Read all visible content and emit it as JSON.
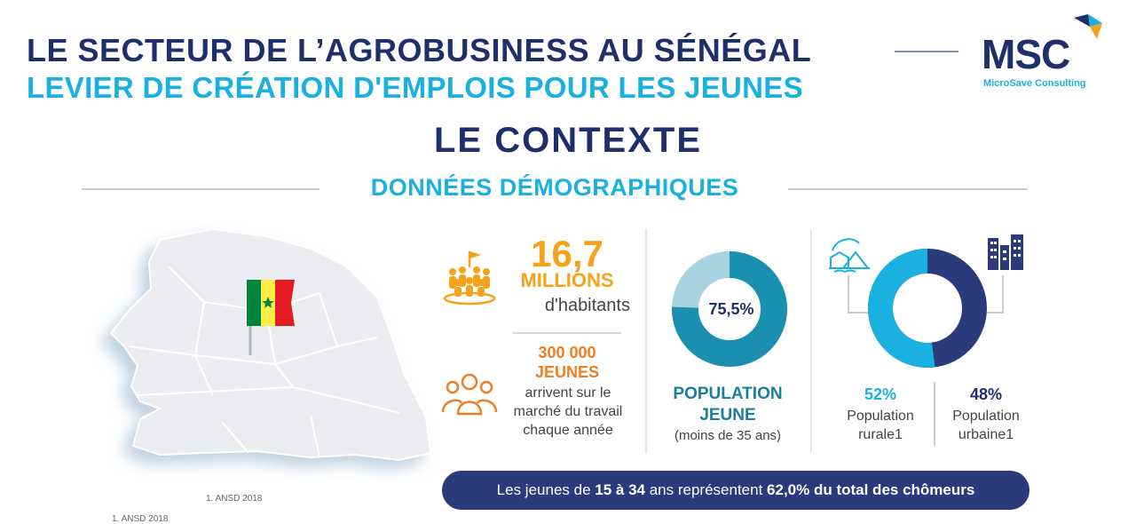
{
  "header": {
    "title_line1": "LE SECTEUR DE L’AGROBUSINESS AU SÉNÉGAL",
    "title_line2": "LEVIER DE CRÉATION D'EMPLOIS POUR LES JEUNES"
  },
  "logo": {
    "text": "MSC",
    "subtitle": "MicroSave Consulting",
    "colors": {
      "navy": "#1f2f6b",
      "cyan": "#1ab0e0"
    }
  },
  "section": {
    "title": "LE CONTEXTE",
    "subtitle": "DONNÉES DÉMOGRAPHIQUES"
  },
  "population": {
    "value": "16,7",
    "unit": "MILLIONS",
    "label": "d'habitants",
    "icon": "crowd-with-flag-icon"
  },
  "youth_entry": {
    "value": "300 000",
    "unit": "JEUNES",
    "line1": "arrivent sur le",
    "line2": "marché du travail",
    "line3": "chaque année",
    "icon": "group-of-people-icon"
  },
  "young_population": {
    "percent_label": "75,5%",
    "percent": 75.5,
    "title_line1": "POPULATION",
    "title_line2": "JEUNE",
    "note": "(moins de 35 ans)",
    "colors": {
      "main": "#1a8fb0",
      "rest": "#a9d3de"
    }
  },
  "rural_urban": {
    "rural": {
      "percent_label": "52%",
      "percent": 52,
      "line1": "Population",
      "line2": "rurale1",
      "icon": "rural-village-icon",
      "color": "#1ab0e0"
    },
    "urban": {
      "percent_label": "48%",
      "percent": 48,
      "line1": "Population",
      "line2": "urbaine1",
      "icon": "city-buildings-icon",
      "color": "#2a3a7a"
    }
  },
  "banner": {
    "part1": "Les jeunes de ",
    "part2": "15 à 34",
    "part3": " ans représentent ",
    "part4": "62,0% du total des chômeurs"
  },
  "map": {
    "icon": "senegal-map-with-flag-icon",
    "flag_colors": [
      "#00853f",
      "#fdef42",
      "#e31b23"
    ]
  },
  "footnotes": {
    "a": "1. ANSD 2018",
    "b": "1. ANSD 2018"
  }
}
